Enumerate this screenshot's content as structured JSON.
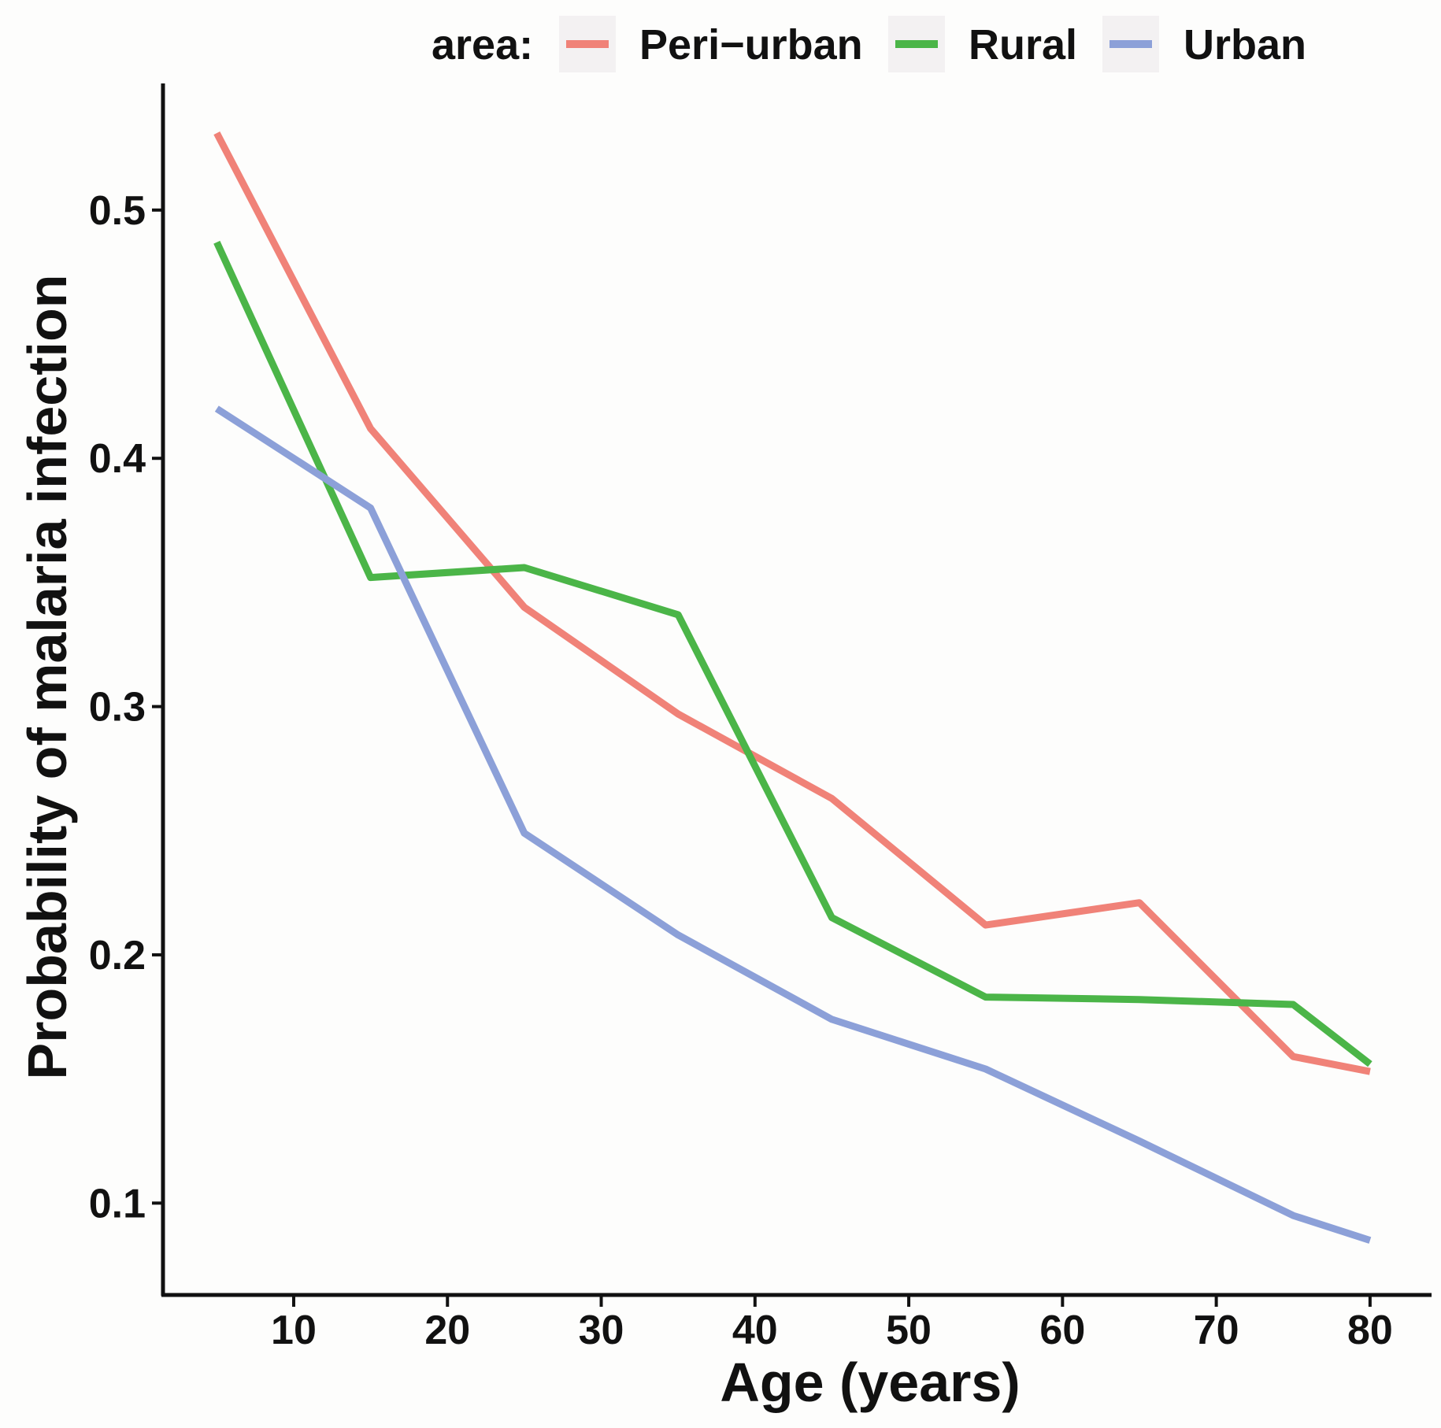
{
  "chart_data": {
    "type": "line",
    "title": "",
    "xlabel": "Age (years)",
    "ylabel": "Probability of malaria infection",
    "xlim": [
      1.5,
      84
    ],
    "ylim": [
      0.063,
      0.551
    ],
    "x_ticks": [
      10,
      20,
      30,
      40,
      50,
      60,
      70,
      80
    ],
    "x_tick_labels": [
      "10",
      "20",
      "30",
      "40",
      "50",
      "60",
      "70",
      "80"
    ],
    "y_ticks": [
      0.1,
      0.2,
      0.3,
      0.4,
      0.5
    ],
    "y_tick_labels": [
      "0.1",
      "0.2",
      "0.3",
      "0.4",
      "0.5"
    ],
    "grid": false,
    "legend": {
      "title": "area:",
      "position": "top"
    },
    "x": [
      5,
      15,
      25,
      35,
      45,
      55,
      65,
      75,
      80
    ],
    "series": [
      {
        "name": "Peri−urban",
        "color": "#f08278",
        "values": [
          0.531,
          0.412,
          0.34,
          0.297,
          0.263,
          0.212,
          0.221,
          0.159,
          0.153
        ]
      },
      {
        "name": "Rural",
        "color": "#4bb548",
        "values": [
          0.487,
          0.352,
          0.356,
          0.337,
          0.215,
          0.183,
          0.182,
          0.18,
          0.156
        ]
      },
      {
        "name": "Urban",
        "color": "#8ca0d8",
        "values": [
          0.42,
          0.38,
          0.249,
          0.208,
          0.174,
          0.154,
          0.125,
          0.095,
          0.085
        ]
      }
    ]
  }
}
